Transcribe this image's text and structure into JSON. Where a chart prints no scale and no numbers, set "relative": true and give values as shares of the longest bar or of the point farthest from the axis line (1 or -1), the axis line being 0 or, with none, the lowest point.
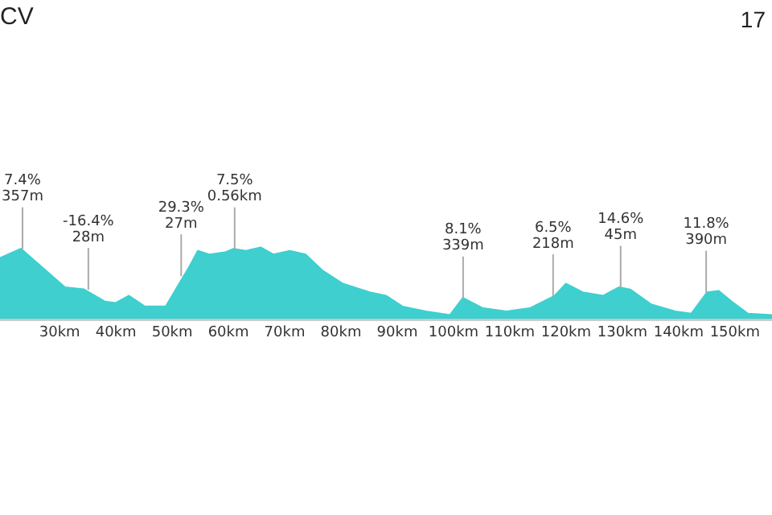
{
  "chart_data": {
    "type": "area",
    "title": "CV",
    "relative": true,
    "color": "#3fcfcf",
    "grid": false,
    "legend": false,
    "x": [
      19.4,
      23.1,
      30.9,
      34.3,
      38.0,
      40.0,
      42.3,
      45.1,
      48.9,
      50.9,
      53.1,
      54.6,
      56.6,
      59.4,
      60.9,
      63.1,
      65.7,
      68.0,
      70.9,
      73.7,
      76.6,
      80.3,
      85.1,
      88.0,
      90.9,
      95.1,
      99.4,
      101.7,
      105.1,
      109.4,
      113.7,
      118.0,
      120.0,
      122.9,
      126.6,
      129.4,
      131.4,
      135.1,
      139.4,
      142.3,
      145.1,
      147.1,
      149.4,
      152.3,
      156.6
    ],
    "values": [
      0.85,
      0.98,
      0.44,
      0.41,
      0.24,
      0.22,
      0.32,
      0.17,
      0.17,
      0.44,
      0.73,
      0.95,
      0.9,
      0.93,
      0.98,
      0.95,
      1,
      0.9,
      0.95,
      0.9,
      0.68,
      0.49,
      0.37,
      0.32,
      0.17,
      0.1,
      0.05,
      0.29,
      0.15,
      0.1,
      0.15,
      0.32,
      0.49,
      0.37,
      0.32,
      0.44,
      0.41,
      0.2,
      0.1,
      0.07,
      0.37,
      0.39,
      0.24,
      0.07,
      0.05
    ],
    "xlim": [
      19.4,
      156.6
    ],
    "xticks": [
      {
        "value": 30,
        "label": "30km"
      },
      {
        "value": 40,
        "label": "40km"
      },
      {
        "value": 50,
        "label": "50km"
      },
      {
        "value": 60,
        "label": "60km"
      },
      {
        "value": 70,
        "label": "70km"
      },
      {
        "value": 80,
        "label": "80km"
      },
      {
        "value": 90,
        "label": "90km"
      },
      {
        "value": 100,
        "label": "100km"
      },
      {
        "value": 110,
        "label": "110km"
      },
      {
        "value": 120,
        "label": "120km"
      },
      {
        "value": 130,
        "label": "130km"
      },
      {
        "value": 140,
        "label": "140km"
      },
      {
        "value": 150,
        "label": "150km"
      }
    ],
    "annotations": [
      "17",
      {
        "text": "7.4%\n357m",
        "x": 23.4,
        "y": 0.98
      },
      {
        "text": "-16.4%\n28m",
        "x": 35.1,
        "y": 0.41
      },
      {
        "text": "29.3%\n27m",
        "x": 51.6,
        "y": 0.6
      },
      {
        "text": "7.5%\n0.56km",
        "x": 61.1,
        "y": 0.98
      },
      {
        "text": "8.1%\n339m",
        "x": 101.7,
        "y": 0.29
      },
      {
        "text": "6.5%\n218m",
        "x": 117.7,
        "y": 0.32
      },
      {
        "text": "14.6%\n45m",
        "x": 129.7,
        "y": 0.44
      },
      {
        "text": "11.8%\n390m",
        "x": 144.9,
        "y": 0.37
      }
    ]
  }
}
